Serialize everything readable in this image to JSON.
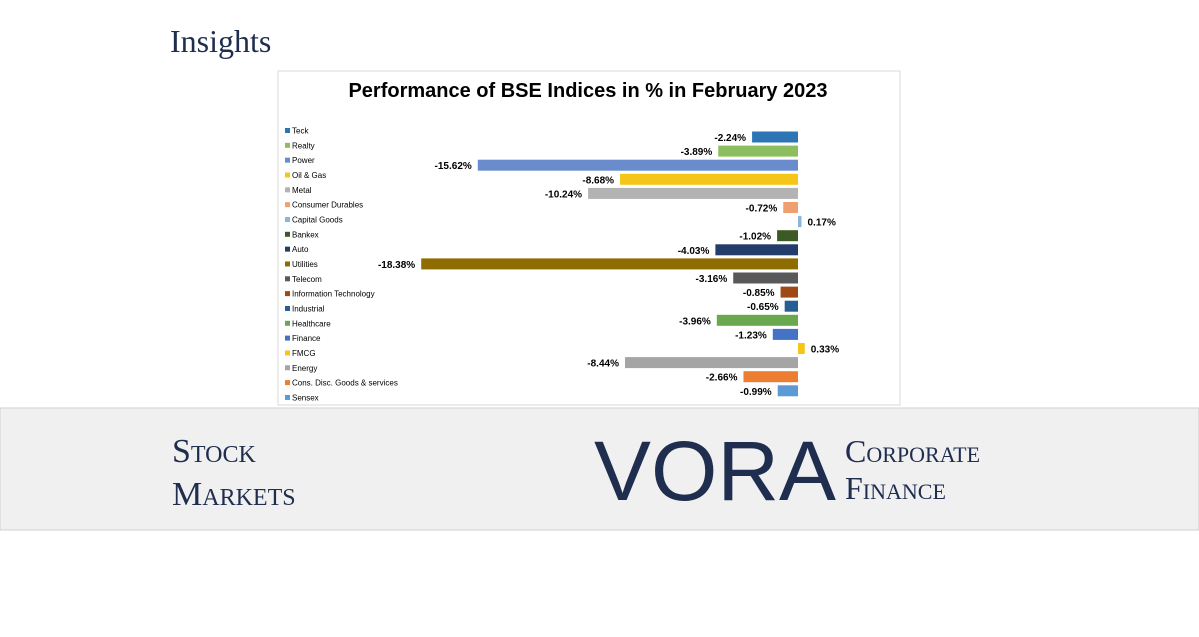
{
  "header": {
    "title": "Insights"
  },
  "banner": {
    "lines": [
      "Stock",
      "Markets"
    ]
  },
  "logo": {
    "name": "VORA",
    "tagline": [
      "Corporate",
      "Finance"
    ]
  },
  "chart_data": {
    "type": "bar",
    "orientation": "horizontal",
    "title": "Performance of BSE Indices in % in February 2023",
    "categories": [
      "Teck",
      "Realty",
      "Power",
      "Oil & Gas",
      "Metal",
      "Consumer Durables",
      "Capital Goods",
      "Bankex",
      "Auto",
      "Utilities",
      "Telecom",
      "Information Technology",
      "Industrial",
      "Healthcare",
      "Finance",
      "FMCG",
      "Energy",
      "Cons. Disc. Goods & services",
      "Sensex"
    ],
    "values": [
      -2.24,
      -3.89,
      -15.62,
      -8.68,
      -10.24,
      -0.72,
      0.17,
      -1.02,
      -4.03,
      -18.38,
      -3.16,
      -0.85,
      -0.65,
      -3.96,
      -1.23,
      0.33,
      -8.44,
      -2.66,
      -0.99
    ],
    "value_labels": [
      "-2.24%",
      "-3.89%",
      "-15.62%",
      "-8.68%",
      "-10.24%",
      "-0.72%",
      "0.17%",
      "-1.02%",
      "-4.03%",
      "-18.38%",
      "-3.16%",
      "-0.85%",
      "-0.65%",
      "-3.96%",
      "-1.23%",
      "0.33%",
      "-8.44%",
      "-2.66%",
      "-0.99%"
    ],
    "colors": [
      "#2e75b6",
      "#8cbd5e",
      "#6a8ccc",
      "#f5c518",
      "#b3b3b3",
      "#f0a070",
      "#8fb4d9",
      "#3d5a24",
      "#243c6a",
      "#8f6c00",
      "#595959",
      "#9e4a16",
      "#255e91",
      "#6aa84f",
      "#4472c4",
      "#f5c518",
      "#a5a5a5",
      "#ed7d31",
      "#5b9bd5"
    ]
  }
}
